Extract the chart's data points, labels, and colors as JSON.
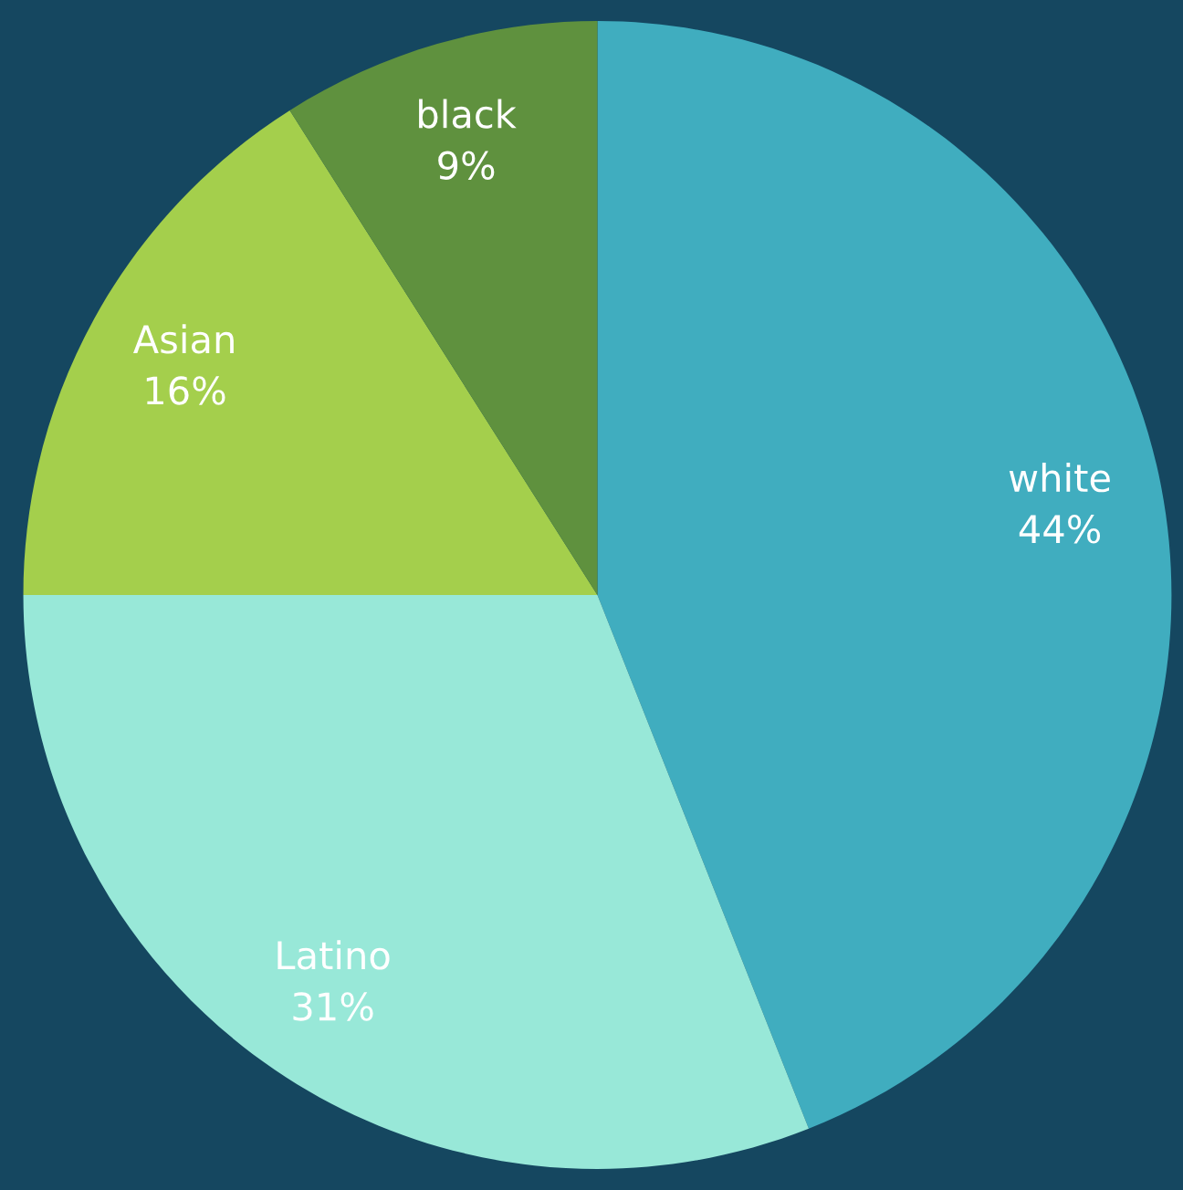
{
  "chart_data": {
    "type": "pie",
    "categories": [
      "white",
      "Latino",
      "Asian",
      "black"
    ],
    "values": [
      44,
      31,
      16,
      9
    ],
    "value_labels": [
      "44%",
      "31%",
      "16%",
      "9%"
    ],
    "colors": [
      "#40adbf",
      "#98e8d8",
      "#a4cf4c",
      "#5f913e"
    ],
    "legend": false
  }
}
